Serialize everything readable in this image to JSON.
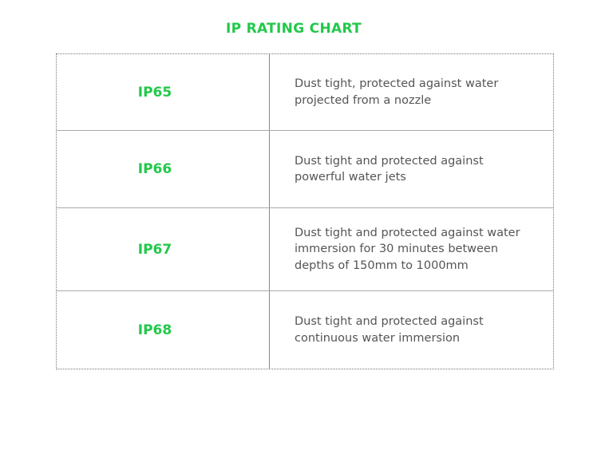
{
  "header": {
    "title": "IP RATING CHART"
  },
  "table": {
    "rows": [
      {
        "rating": "IP65",
        "description": [
          "Dust tight, protected against water",
          "projected from a nozzle"
        ]
      },
      {
        "rating": "IP66",
        "description": [
          "Dust tight and protected against",
          "powerful water jets"
        ]
      },
      {
        "rating": "IP67",
        "description": [
          "Dust tight and protected against water",
          "immersion for 30 minutes between",
          "depths of 150mm to 1000mm"
        ]
      },
      {
        "rating": "IP68",
        "description": [
          "Dust tight and protected against",
          "continuous water immersion"
        ]
      }
    ]
  }
}
